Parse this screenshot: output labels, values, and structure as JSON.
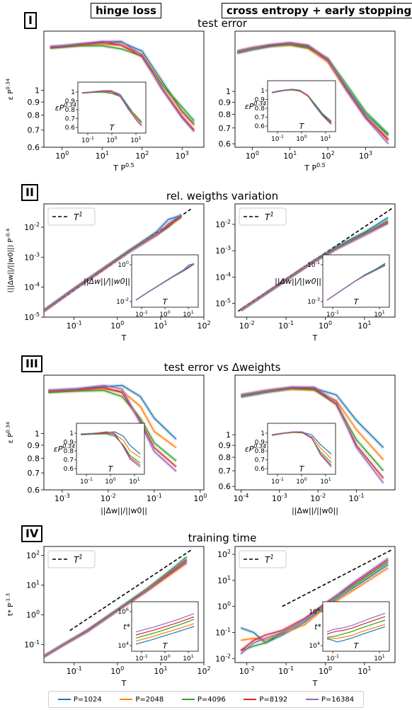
{
  "headers": {
    "left": "hinge loss",
    "right": "cross entropy + early stopping"
  },
  "rows": [
    {
      "roman": "I",
      "title": "test error"
    },
    {
      "roman": "II",
      "title": "rel. weigths variation"
    },
    {
      "roman": "III",
      "title": "test error vs Δweights"
    },
    {
      "roman": "IV",
      "title": "training time"
    }
  ],
  "legend": [
    {
      "label": "P=1024",
      "color": "#1f77b4"
    },
    {
      "label": "P=2048",
      "color": "#ff7f0e"
    },
    {
      "label": "P=4096",
      "color": "#2ca02c"
    },
    {
      "label": "P=8192",
      "color": "#d62728"
    },
    {
      "label": "P=16384",
      "color": "#9467bd"
    }
  ],
  "chart_data": [
    {
      "row": "I",
      "column": "hinge loss",
      "type": "line",
      "x_scale": "log",
      "y_scale": "log",
      "xlabel": "T P^0.5",
      "ylabel": "ε P^0.34",
      "xlim": [
        0.35,
        3500
      ],
      "ylim": [
        0.6,
        1.7
      ],
      "xticks": [
        "10^0",
        "10^1",
        "10^2",
        "10^3"
      ],
      "yticks": [
        "0.6",
        "0.7",
        "0.8",
        "0.9",
        "1"
      ],
      "series_x": [
        0.5,
        1,
        3,
        10,
        30,
        100,
        300,
        1000,
        2000
      ],
      "series": [
        {
          "name": "P=1024",
          "values": [
            1.48,
            1.49,
            1.51,
            1.53,
            1.54,
            1.42,
            1.1,
            0.83,
            0.74
          ]
        },
        {
          "name": "P=2048",
          "values": [
            1.46,
            1.48,
            1.5,
            1.51,
            1.5,
            1.38,
            1.07,
            0.82,
            0.73
          ]
        },
        {
          "name": "P=4096",
          "values": [
            1.46,
            1.47,
            1.49,
            1.49,
            1.45,
            1.36,
            1.06,
            0.86,
            0.76
          ]
        },
        {
          "name": "P=8192",
          "values": [
            1.47,
            1.48,
            1.51,
            1.54,
            1.5,
            1.35,
            1.03,
            0.79,
            0.7
          ]
        },
        {
          "name": "P=16384",
          "values": [
            1.48,
            1.49,
            1.52,
            1.55,
            1.55,
            1.37,
            1.02,
            0.78,
            0.69
          ]
        }
      ],
      "inset": {
        "xlabel": "T",
        "ylabel": "εP^0.34",
        "xticks": [
          "10^-1",
          "10^0",
          "10^1"
        ],
        "yticks": [
          "0.6",
          "0.7",
          "0.8",
          "0.9",
          "1"
        ]
      }
    },
    {
      "row": "I",
      "column": "cross entropy + early stopping",
      "type": "line",
      "x_scale": "log",
      "y_scale": "log",
      "xlabel": "T P^0.5",
      "ylabel": "",
      "xlim": [
        0.35,
        6000
      ],
      "ylim": [
        0.58,
        1.8
      ],
      "xticks": [
        "10^0",
        "10^1",
        "10^2",
        "10^3"
      ],
      "yticks": [
        "0.6",
        "0.7",
        "0.8",
        "0.9",
        "1"
      ],
      "series_x": [
        0.4,
        1,
        3,
        10,
        30,
        100,
        300,
        1000,
        4000
      ],
      "series": [
        {
          "name": "P=1024",
          "values": [
            1.45,
            1.5,
            1.55,
            1.58,
            1.55,
            1.35,
            1.05,
            0.8,
            0.65
          ]
        },
        {
          "name": "P=2048",
          "values": [
            1.46,
            1.51,
            1.56,
            1.57,
            1.52,
            1.33,
            1.02,
            0.78,
            0.63
          ]
        },
        {
          "name": "P=4096",
          "values": [
            1.47,
            1.52,
            1.56,
            1.58,
            1.53,
            1.38,
            1.08,
            0.82,
            0.66
          ]
        },
        {
          "name": "P=8192",
          "values": [
            1.48,
            1.53,
            1.57,
            1.6,
            1.56,
            1.36,
            1.03,
            0.78,
            0.62
          ]
        },
        {
          "name": "P=16384",
          "values": [
            1.48,
            1.53,
            1.58,
            1.61,
            1.57,
            1.37,
            1.02,
            0.77,
            0.6
          ]
        }
      ],
      "inset": {
        "xlabel": "T",
        "ylabel": "εP^0.34",
        "xticks": [
          "10^-1",
          "10^0",
          "10^1"
        ],
        "yticks": [
          "0.6",
          "0.7",
          "0.8",
          "0.9",
          "1"
        ]
      }
    },
    {
      "row": "II",
      "column": "hinge loss",
      "type": "line",
      "x_scale": "log",
      "y_scale": "log",
      "xlabel": "T",
      "ylabel": "(||Δw||/||w0||) P^-0.4",
      "xlim": [
        0.02,
        100
      ],
      "ylim": [
        1e-05,
        0.06
      ],
      "xticks": [
        "10^-1",
        "10^0",
        "10^1",
        "10^2"
      ],
      "yticks": [
        "10^-5",
        "10^-4",
        "10^-3",
        "10^-2"
      ],
      "reference": {
        "label": "T^1",
        "x": [
          0.02,
          50
        ],
        "y": [
          1.6e-05,
          0.04
        ]
      },
      "series_x": [
        0.02,
        0.1,
        0.5,
        2,
        8,
        15,
        30
      ],
      "series": [
        {
          "name": "P=1024",
          "values": [
            1.7e-05,
            9e-05,
            0.00045,
            0.0018,
            0.007,
            0.018,
            0.025
          ]
        },
        {
          "name": "P=2048",
          "values": [
            1.6e-05,
            8.5e-05,
            0.00043,
            0.0017,
            0.006,
            0.012,
            0.022
          ]
        },
        {
          "name": "P=4096",
          "values": [
            1.6e-05,
            8.5e-05,
            0.00042,
            0.0017,
            0.0055,
            0.01,
            0.025
          ]
        },
        {
          "name": "P=8192",
          "values": [
            1.6e-05,
            8.5e-05,
            0.00042,
            0.0016,
            0.0055,
            0.011,
            0.022
          ]
        },
        {
          "name": "P=16384",
          "values": [
            1.6e-05,
            8.5e-05,
            0.00041,
            0.0016,
            0.0055,
            0.013,
            0.026
          ]
        }
      ],
      "legend_entry": "T^1",
      "inset": {
        "xlabel": "T",
        "ylabel": "||Δw||/||w0||",
        "xticks": [
          "10^-1",
          "10^0",
          "10^1"
        ],
        "yticks": [
          "10^-2",
          "10^0"
        ]
      }
    },
    {
      "row": "II",
      "column": "cross entropy + early stopping",
      "type": "line",
      "x_scale": "log",
      "y_scale": "log",
      "xlabel": "T",
      "ylabel": "",
      "xlim": [
        0.005,
        60
      ],
      "ylim": [
        3e-06,
        0.06
      ],
      "xticks": [
        "10^-2",
        "10^-1",
        "10^0",
        "10^1"
      ],
      "yticks": [
        "10^-5",
        "10^-4",
        "10^-3",
        "10^-2"
      ],
      "reference": {
        "label": "T^1",
        "x": [
          0.006,
          50
        ],
        "y": [
          5e-06,
          0.04
        ]
      },
      "series_x": [
        0.007,
        0.03,
        0.1,
        0.5,
        2,
        10,
        40
      ],
      "series": [
        {
          "name": "P=1024",
          "values": [
            5.5e-06,
            2.4e-05,
            8e-05,
            0.0004,
            0.0015,
            0.005,
            0.018
          ]
        },
        {
          "name": "P=2048",
          "values": [
            5.5e-06,
            2.3e-05,
            7.8e-05,
            0.00039,
            0.0013,
            0.004,
            0.012
          ]
        },
        {
          "name": "P=4096",
          "values": [
            5.5e-06,
            2.3e-05,
            7.8e-05,
            0.00039,
            0.0013,
            0.0045,
            0.014
          ]
        },
        {
          "name": "P=8192",
          "values": [
            5.5e-06,
            2.3e-05,
            7.8e-05,
            0.00038,
            0.0012,
            0.004,
            0.012
          ]
        },
        {
          "name": "P=16384",
          "values": [
            5.5e-06,
            2.3e-05,
            7.7e-05,
            0.00038,
            0.0012,
            0.004,
            0.011
          ]
        }
      ],
      "legend_entry": "T^1",
      "inset": {
        "xlabel": "T",
        "ylabel": "||Δw||/||w0||",
        "xticks": [
          "10^-1",
          "10^1"
        ],
        "yticks": [
          "10^-3",
          "10^-1"
        ]
      }
    },
    {
      "row": "III",
      "column": "hinge loss",
      "type": "line",
      "x_scale": "log",
      "y_scale": "log",
      "xlabel": "||Δw||/||w0||",
      "ylabel": "ε P^0.34",
      "xlim": [
        0.0004,
        1.2
      ],
      "ylim": [
        0.6,
        1.7
      ],
      "xticks": [
        "10^-3",
        "10^-2",
        "10^-1",
        "10^0"
      ],
      "yticks": [
        "0.6",
        "0.7",
        "0.8",
        "0.9",
        "1"
      ],
      "series_x": [
        0.0005,
        0.002,
        0.008,
        0.02,
        0.05,
        0.1,
        0.3
      ],
      "series": [
        {
          "name": "P=1024",
          "values": [
            1.48,
            1.5,
            1.53,
            1.55,
            1.4,
            1.15,
            0.95
          ]
        },
        {
          "name": "P=2048",
          "values": [
            1.46,
            1.48,
            1.5,
            1.47,
            1.28,
            1.02,
            0.88
          ]
        },
        {
          "name": "P=4096",
          "values": [
            1.45,
            1.47,
            1.48,
            1.4,
            1.15,
            0.92,
            0.78
          ]
        },
        {
          "name": "P=8192",
          "values": [
            1.47,
            1.49,
            1.52,
            1.45,
            1.12,
            0.88,
            0.74
          ]
        },
        {
          "name": "P=16384",
          "values": [
            1.48,
            1.5,
            1.55,
            1.5,
            1.1,
            0.85,
            0.71
          ]
        }
      ],
      "inset": {
        "xlabel": "T",
        "ylabel": "εP^0.34",
        "xticks": [
          "10^-1",
          "10^0",
          "10^1"
        ],
        "yticks": [
          "0.6",
          "0.7",
          "0.8",
          "0.9",
          "1"
        ]
      }
    },
    {
      "row": "III",
      "column": "cross entropy + early stopping",
      "type": "line",
      "x_scale": "log",
      "y_scale": "log",
      "xlabel": "||Δw||/||w0||",
      "ylabel": "",
      "xlim": [
        7e-05,
        1.0
      ],
      "ylim": [
        0.58,
        1.8
      ],
      "xticks": [
        "10^-4",
        "10^-3",
        "10^-2",
        "10^-1"
      ],
      "yticks": [
        "0.6",
        "0.7",
        "0.8",
        "0.9",
        "1"
      ],
      "series_x": [
        0.0001,
        0.0005,
        0.002,
        0.008,
        0.03,
        0.1,
        0.5
      ],
      "series": [
        {
          "name": "P=1024",
          "values": [
            1.45,
            1.52,
            1.57,
            1.58,
            1.48,
            1.15,
            0.88
          ]
        },
        {
          "name": "P=2048",
          "values": [
            1.46,
            1.53,
            1.57,
            1.55,
            1.4,
            1.05,
            0.78
          ]
        },
        {
          "name": "P=4096",
          "values": [
            1.47,
            1.54,
            1.58,
            1.56,
            1.35,
            0.95,
            0.7
          ]
        },
        {
          "name": "P=8192",
          "values": [
            1.48,
            1.55,
            1.59,
            1.58,
            1.35,
            0.9,
            0.65
          ]
        },
        {
          "name": "P=16384",
          "values": [
            1.48,
            1.55,
            1.6,
            1.6,
            1.38,
            0.88,
            0.62
          ]
        }
      ],
      "inset": {
        "xlabel": "T",
        "ylabel": "εP^0.34",
        "xticks": [
          "10^-1",
          "10^0",
          "10^1"
        ],
        "yticks": [
          "0.6",
          "0.7",
          "0.8",
          "0.9",
          "1"
        ]
      }
    },
    {
      "row": "IV",
      "column": "hinge loss",
      "type": "line",
      "x_scale": "log",
      "y_scale": "log",
      "xlabel": "T",
      "ylabel": "t* P^-1.3",
      "xlim": [
        0.02,
        100
      ],
      "ylim": [
        0.025,
        200
      ],
      "xticks": [
        "10^-1",
        "10^0",
        "10^1",
        "10^2"
      ],
      "yticks": [
        "10^-1",
        "10^0",
        "10^1",
        "10^2"
      ],
      "reference": {
        "label": "T^1",
        "x": [
          0.08,
          50
        ],
        "y": [
          0.3,
          150
        ]
      },
      "series_x": [
        0.02,
        0.05,
        0.2,
        1,
        5,
        15,
        40
      ],
      "series": [
        {
          "name": "P=1024",
          "values": [
            0.04,
            0.09,
            0.3,
            1.5,
            7,
            22,
            60
          ]
        },
        {
          "name": "P=2048",
          "values": [
            0.04,
            0.09,
            0.28,
            1.4,
            6.5,
            20,
            55
          ]
        },
        {
          "name": "P=4096",
          "values": [
            0.04,
            0.09,
            0.29,
            1.5,
            8,
            28,
            90
          ]
        },
        {
          "name": "P=8192",
          "values": [
            0.04,
            0.09,
            0.29,
            1.4,
            7,
            24,
            70
          ]
        },
        {
          "name": "P=16384",
          "values": [
            0.04,
            0.09,
            0.28,
            1.4,
            7,
            25,
            75
          ]
        }
      ],
      "legend_entry": "T^1",
      "inset": {
        "xlabel": "T",
        "ylabel": "t*",
        "xticks": [
          "10^-1",
          "10^0",
          "10^1"
        ],
        "yticks": [
          "10^4",
          "10^6"
        ]
      }
    },
    {
      "row": "IV",
      "column": "cross entropy + early stopping",
      "type": "line",
      "x_scale": "log",
      "y_scale": "log",
      "xlabel": "T",
      "ylabel": "",
      "xlim": [
        0.005,
        60
      ],
      "ylim": [
        0.007,
        200
      ],
      "xticks": [
        "10^-2",
        "10^-1",
        "10^0",
        "10^1"
      ],
      "yticks": [
        "10^-2",
        "10^-1",
        "10^0",
        "10^1",
        "10^2"
      ],
      "reference": {
        "label": "T^1",
        "x": [
          0.08,
          50
        ],
        "y": [
          1.0,
          150
        ]
      },
      "series_x": [
        0.007,
        0.015,
        0.03,
        0.08,
        0.3,
        1,
        5,
        40
      ],
      "series": [
        {
          "name": "P=1024",
          "values": [
            0.15,
            0.1,
            0.04,
            0.08,
            0.25,
            1.0,
            5,
            40
          ]
        },
        {
          "name": "P=2048",
          "values": [
            0.05,
            0.06,
            0.05,
            0.09,
            0.2,
            0.9,
            4,
            30
          ]
        },
        {
          "name": "P=4096",
          "values": [
            0.02,
            0.03,
            0.04,
            0.1,
            0.3,
            1.2,
            6,
            50
          ]
        },
        {
          "name": "P=8192",
          "values": [
            0.02,
            0.05,
            0.08,
            0.12,
            0.35,
            1.3,
            7,
            60
          ]
        },
        {
          "name": "P=16384",
          "values": [
            0.015,
            0.04,
            0.06,
            0.1,
            0.3,
            1.2,
            8,
            70
          ]
        }
      ],
      "legend_entry": "T^1",
      "inset": {
        "xlabel": "T",
        "ylabel": "t*",
        "xticks": [
          "10^-1",
          "10^1"
        ],
        "yticks": [
          "10^4",
          "10^6"
        ]
      }
    }
  ]
}
